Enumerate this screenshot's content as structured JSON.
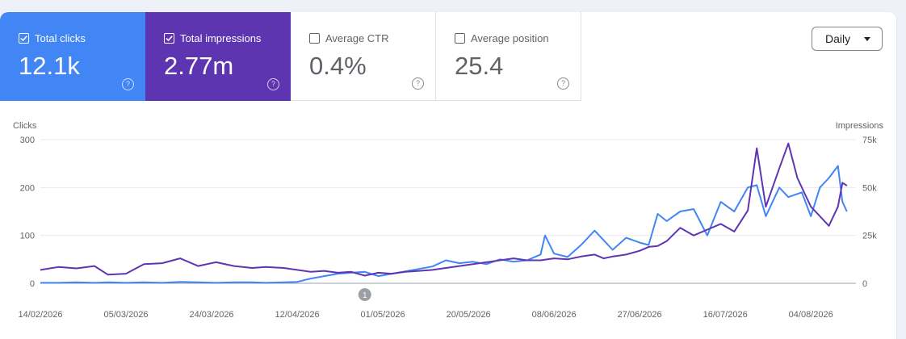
{
  "metrics": [
    {
      "label": "Total clicks",
      "value": "12.1k",
      "checked": true
    },
    {
      "label": "Total impressions",
      "value": "2.77m",
      "checked": true
    },
    {
      "label": "Average CTR",
      "value": "0.4%",
      "checked": false
    },
    {
      "label": "Average position",
      "value": "25.4",
      "checked": false
    }
  ],
  "granularity": {
    "selected": "Daily"
  },
  "annotation_marker": "1",
  "colors": {
    "clicks": "#4285f4",
    "impressions": "#5e35b1",
    "background": "#eef1f8"
  },
  "icons": [
    "checkbox-checked-icon",
    "checkbox-empty-icon",
    "help-icon",
    "dropdown-caret-icon"
  ],
  "chart_data": {
    "type": "line",
    "y_left": {
      "label": "Clicks",
      "ticks": [
        0,
        100,
        200,
        300
      ],
      "ylim": [
        0,
        300
      ]
    },
    "y_right": {
      "label": "Impressions",
      "ticks": [
        "0",
        "25k",
        "50k",
        "75k"
      ],
      "ylim": [
        0,
        75000
      ]
    },
    "x_ticks": [
      "14/02/2026",
      "05/03/2026",
      "24/03/2026",
      "12/04/2026",
      "01/05/2026",
      "20/05/2026",
      "08/06/2026",
      "27/06/2026",
      "16/07/2026",
      "04/08/2026"
    ],
    "x_range": [
      "2026-02-14",
      "2026-08-14"
    ],
    "annotation": {
      "label": "1",
      "date": "2026-04-27"
    },
    "grid": true,
    "series": [
      {
        "name": "Clicks",
        "color": "#4285f4",
        "axis": "left",
        "points": [
          [
            "2026-02-14",
            1
          ],
          [
            "2026-02-18",
            1
          ],
          [
            "2026-02-22",
            2
          ],
          [
            "2026-02-26",
            1
          ],
          [
            "2026-03-01",
            2
          ],
          [
            "2026-03-05",
            1
          ],
          [
            "2026-03-09",
            2
          ],
          [
            "2026-03-13",
            1
          ],
          [
            "2026-03-17",
            3
          ],
          [
            "2026-03-21",
            2
          ],
          [
            "2026-03-25",
            1
          ],
          [
            "2026-03-29",
            2
          ],
          [
            "2026-04-02",
            2
          ],
          [
            "2026-04-05",
            1
          ],
          [
            "2026-04-09",
            2
          ],
          [
            "2026-04-12",
            3
          ],
          [
            "2026-04-15",
            10
          ],
          [
            "2026-04-18",
            15
          ],
          [
            "2026-04-21",
            20
          ],
          [
            "2026-04-24",
            22
          ],
          [
            "2026-04-27",
            24
          ],
          [
            "2026-04-30",
            15
          ],
          [
            "2026-05-03",
            20
          ],
          [
            "2026-05-06",
            25
          ],
          [
            "2026-05-09",
            30
          ],
          [
            "2026-05-12",
            35
          ],
          [
            "2026-05-15",
            48
          ],
          [
            "2026-05-18",
            42
          ],
          [
            "2026-05-21",
            45
          ],
          [
            "2026-05-24",
            40
          ],
          [
            "2026-05-27",
            50
          ],
          [
            "2026-05-30",
            45
          ],
          [
            "2026-06-02",
            48
          ],
          [
            "2026-06-05",
            60
          ],
          [
            "2026-06-06",
            100
          ],
          [
            "2026-06-08",
            62
          ],
          [
            "2026-06-11",
            55
          ],
          [
            "2026-06-14",
            80
          ],
          [
            "2026-06-17",
            110
          ],
          [
            "2026-06-19",
            90
          ],
          [
            "2026-06-21",
            70
          ],
          [
            "2026-06-24",
            95
          ],
          [
            "2026-06-27",
            85
          ],
          [
            "2026-06-29",
            80
          ],
          [
            "2026-07-01",
            145
          ],
          [
            "2026-07-03",
            130
          ],
          [
            "2026-07-06",
            150
          ],
          [
            "2026-07-09",
            155
          ],
          [
            "2026-07-12",
            100
          ],
          [
            "2026-07-15",
            170
          ],
          [
            "2026-07-18",
            150
          ],
          [
            "2026-07-21",
            200
          ],
          [
            "2026-07-23",
            205
          ],
          [
            "2026-07-25",
            140
          ],
          [
            "2026-07-28",
            200
          ],
          [
            "2026-07-30",
            180
          ],
          [
            "2026-08-02",
            190
          ],
          [
            "2026-08-04",
            140
          ],
          [
            "2026-08-06",
            200
          ],
          [
            "2026-08-08",
            220
          ],
          [
            "2026-08-10",
            245
          ],
          [
            "2026-08-11",
            170
          ],
          [
            "2026-08-12",
            150
          ]
        ]
      },
      {
        "name": "Impressions",
        "color": "#5e35b1",
        "axis": "right",
        "points": [
          [
            "2026-02-14",
            7000
          ],
          [
            "2026-02-18",
            8500
          ],
          [
            "2026-02-22",
            7800
          ],
          [
            "2026-02-26",
            9000
          ],
          [
            "2026-03-01",
            4500
          ],
          [
            "2026-03-05",
            5000
          ],
          [
            "2026-03-09",
            10000
          ],
          [
            "2026-03-13",
            10500
          ],
          [
            "2026-03-17",
            13000
          ],
          [
            "2026-03-21",
            9000
          ],
          [
            "2026-03-25",
            11000
          ],
          [
            "2026-03-29",
            9000
          ],
          [
            "2026-04-02",
            8000
          ],
          [
            "2026-04-05",
            8500
          ],
          [
            "2026-04-09",
            8000
          ],
          [
            "2026-04-12",
            7000
          ],
          [
            "2026-04-15",
            6000
          ],
          [
            "2026-04-18",
            6500
          ],
          [
            "2026-04-21",
            5500
          ],
          [
            "2026-04-24",
            6000
          ],
          [
            "2026-04-27",
            4000
          ],
          [
            "2026-04-30",
            5500
          ],
          [
            "2026-05-03",
            5000
          ],
          [
            "2026-05-06",
            6000
          ],
          [
            "2026-05-09",
            6500
          ],
          [
            "2026-05-12",
            7000
          ],
          [
            "2026-05-15",
            8000
          ],
          [
            "2026-05-18",
            9000
          ],
          [
            "2026-05-21",
            10000
          ],
          [
            "2026-05-24",
            11000
          ],
          [
            "2026-05-27",
            12000
          ],
          [
            "2026-05-30",
            13000
          ],
          [
            "2026-06-02",
            12000
          ],
          [
            "2026-06-05",
            12000
          ],
          [
            "2026-06-08",
            13000
          ],
          [
            "2026-06-11",
            12500
          ],
          [
            "2026-06-14",
            14000
          ],
          [
            "2026-06-17",
            15000
          ],
          [
            "2026-06-19",
            13000
          ],
          [
            "2026-06-21",
            14000
          ],
          [
            "2026-06-24",
            15000
          ],
          [
            "2026-06-27",
            17000
          ],
          [
            "2026-06-29",
            19000
          ],
          [
            "2026-07-01",
            19500
          ],
          [
            "2026-07-03",
            22000
          ],
          [
            "2026-07-06",
            29000
          ],
          [
            "2026-07-09",
            25000
          ],
          [
            "2026-07-12",
            28000
          ],
          [
            "2026-07-15",
            31000
          ],
          [
            "2026-07-18",
            27000
          ],
          [
            "2026-07-21",
            38000
          ],
          [
            "2026-07-23",
            70500
          ],
          [
            "2026-07-25",
            40000
          ],
          [
            "2026-07-28",
            60000
          ],
          [
            "2026-07-30",
            73000
          ],
          [
            "2026-08-01",
            55000
          ],
          [
            "2026-08-04",
            40000
          ],
          [
            "2026-08-06",
            35000
          ],
          [
            "2026-08-08",
            30000
          ],
          [
            "2026-08-10",
            40000
          ],
          [
            "2026-08-11",
            52500
          ],
          [
            "2026-08-12",
            51000
          ]
        ]
      }
    ]
  }
}
